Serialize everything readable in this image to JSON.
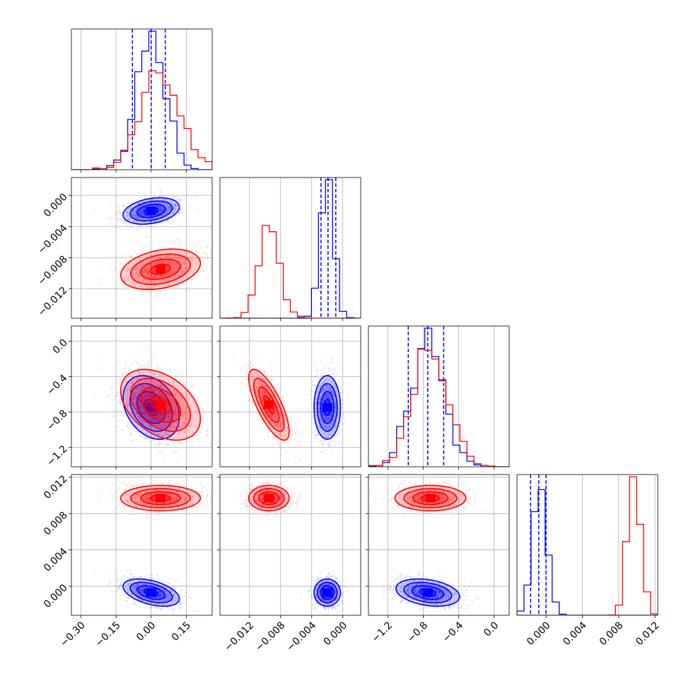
{
  "chart_data": {
    "type": "corner",
    "series_colors": [
      "#0000ff",
      "#ff0000"
    ],
    "grid": true,
    "variables": [
      {
        "range": [
          -0.34,
          0.26
        ],
        "ticks": [
          -0.3,
          -0.15,
          0.0,
          0.15
        ],
        "tick_labels": [
          "−0.30",
          "−0.15",
          "0.00",
          "0.15"
        ]
      },
      {
        "range": [
          -0.0158,
          0.0023
        ],
        "ticks": [
          -0.012,
          -0.008,
          -0.004,
          0.0
        ],
        "tick_labels": [
          "−0.012",
          "−0.008",
          "−0.004",
          "0.000"
        ]
      },
      {
        "range": [
          -1.42,
          0.17
        ],
        "ticks": [
          -1.2,
          -0.8,
          -0.4,
          0.0
        ],
        "tick_labels": [
          "−1.2",
          "−0.8",
          "−0.4",
          "0.0"
        ]
      },
      {
        "range": [
          -0.0032,
          0.0123
        ],
        "ticks": [
          0.0,
          0.004,
          0.008,
          0.012
        ],
        "tick_labels": [
          "0.000",
          "0.004",
          "0.008",
          "0.012"
        ]
      }
    ],
    "series": [
      {
        "color": "#0000ff",
        "mean": [
          0.0,
          -0.002,
          -0.75,
          -0.0007
        ],
        "std": [
          0.06,
          0.00085,
          0.18,
          0.00075
        ],
        "correlation": [
          [
            1,
            0.3,
            -0.3,
            -0.45
          ],
          [
            0.3,
            1,
            0.0,
            0.0
          ],
          [
            -0.3,
            0.0,
            1,
            -0.3
          ],
          [
            -0.45,
            0.0,
            -0.3,
            1
          ]
        ],
        "quantiles": [
          [
            -0.08,
            0.0,
            0.06
          ],
          [
            -0.0028,
            -0.0019,
            -0.0009
          ],
          [
            -0.97,
            -0.75,
            -0.57
          ],
          [
            -0.0017,
            -0.0008,
            0.0
          ]
        ]
      },
      {
        "color": "#ff0000",
        "mean": [
          0.04,
          -0.0095,
          -0.72,
          0.0097
        ],
        "std": [
          0.085,
          0.0013,
          0.2,
          0.0007
        ],
        "correlation": [
          [
            1,
            0.3,
            -0.4,
            0.0
          ],
          [
            0.3,
            1,
            -0.75,
            0.0
          ],
          [
            -0.4,
            -0.75,
            1,
            0.0
          ],
          [
            0.0,
            0.0,
            0.0,
            1
          ]
        ]
      }
    ]
  }
}
